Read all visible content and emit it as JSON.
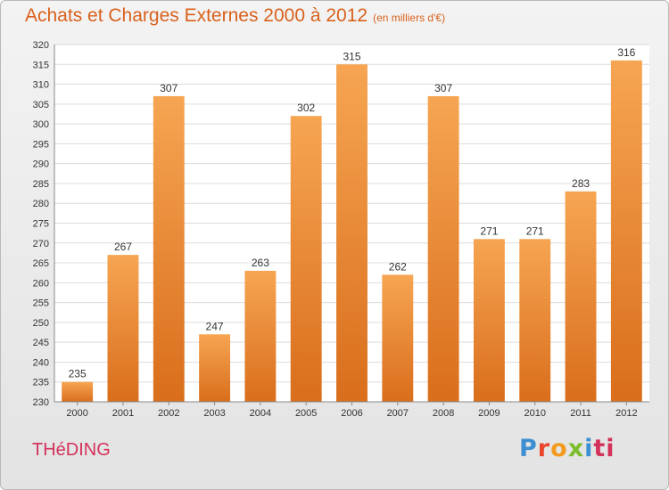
{
  "header": {
    "title": "Achats et Charges Externes 2000 à 2012",
    "subtitle": "(en milliers d'€)"
  },
  "footer": {
    "commune": "THéDING",
    "logo": [
      "P",
      "r",
      "o",
      "x",
      "i",
      "ti"
    ]
  },
  "colors": {
    "bar_top": "#f6a552",
    "bar_bottom": "#d96e1c",
    "title": "#d8611d",
    "commune": "#d3315a"
  },
  "chart_data": {
    "type": "bar",
    "title": "Achats et Charges Externes 2000 à 2012",
    "subtitle": "(en milliers d'€)",
    "categories": [
      "2000",
      "2001",
      "2002",
      "2003",
      "2004",
      "2005",
      "2006",
      "2007",
      "2008",
      "2009",
      "2010",
      "2011",
      "2012"
    ],
    "values": [
      235,
      267,
      307,
      247,
      263,
      302,
      315,
      262,
      307,
      271,
      271,
      283,
      316
    ],
    "ylim": [
      230,
      320
    ],
    "ytick_step": 5,
    "grid": true,
    "data_labels": true
  }
}
